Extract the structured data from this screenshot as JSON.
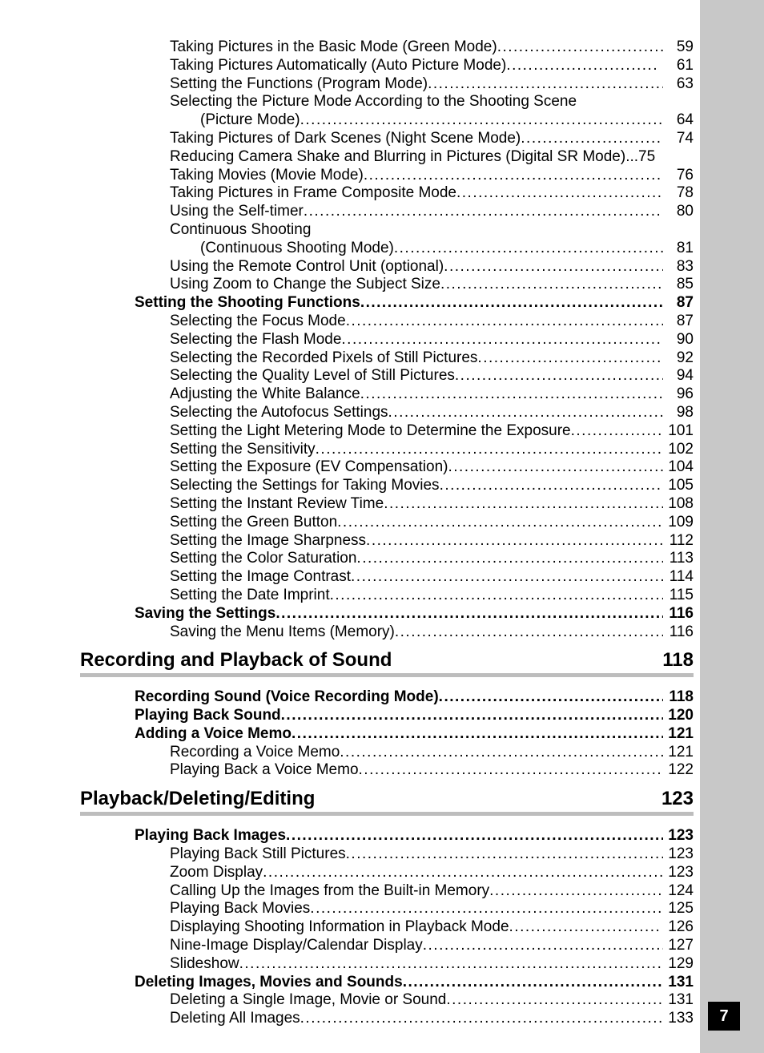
{
  "page_number": "7",
  "colors": {
    "right_bar": "#c8c8c8",
    "page_box_bg": "#000000",
    "page_box_fg": "#ffffff",
    "rule": "#bdbdbd",
    "text": "#000000",
    "page_bg": "#ffffff"
  },
  "typography": {
    "body_fontsize_pt": 14,
    "header_fontsize_pt": 18,
    "font_family": "Arial"
  },
  "entries": [
    {
      "kind": "line",
      "level": 2,
      "text": "Taking Pictures in the Basic Mode (Green Mode)",
      "page": "59"
    },
    {
      "kind": "line",
      "level": 2,
      "text": "Taking Pictures Automatically (Auto Picture Mode)",
      "page": "61",
      "short_dots": true
    },
    {
      "kind": "line",
      "level": 2,
      "text": "Setting the Functions (Program Mode)",
      "page": "63"
    },
    {
      "kind": "line-nopage",
      "level": 2,
      "text": "Selecting the Picture Mode According to the Shooting Scene"
    },
    {
      "kind": "cont",
      "text": "(Picture Mode)",
      "page": "64"
    },
    {
      "kind": "line",
      "level": 2,
      "text": "Taking Pictures of Dark Scenes (Night Scene Mode)",
      "page": "74",
      "short_dots": true
    },
    {
      "kind": "line",
      "level": 2,
      "text": "Reducing Camera Shake and Blurring in Pictures (Digital SR Mode)",
      "page": "75",
      "tight": true
    },
    {
      "kind": "line",
      "level": 2,
      "text": "Taking Movies (Movie Mode)",
      "page": "76"
    },
    {
      "kind": "line",
      "level": 2,
      "text": "Taking Pictures in Frame Composite Mode",
      "page": "78"
    },
    {
      "kind": "line",
      "level": 2,
      "text": "Using the Self-timer",
      "page": "80"
    },
    {
      "kind": "line-nopage",
      "level": 2,
      "text": "Continuous Shooting"
    },
    {
      "kind": "cont",
      "text": "(Continuous Shooting Mode)",
      "page": "81"
    },
    {
      "kind": "line",
      "level": 2,
      "text": "Using the Remote Control Unit (optional)",
      "page": "83"
    },
    {
      "kind": "line",
      "level": 2,
      "text": "Using Zoom to Change the Subject Size",
      "page": "85"
    },
    {
      "kind": "line",
      "level": 1,
      "text": "Setting the Shooting Functions",
      "page": "87"
    },
    {
      "kind": "line",
      "level": 2,
      "text": "Selecting the Focus Mode",
      "page": "87"
    },
    {
      "kind": "line",
      "level": 2,
      "text": "Selecting the Flash Mode",
      "page": "90"
    },
    {
      "kind": "line",
      "level": 2,
      "text": "Selecting the Recorded Pixels of Still Pictures",
      "page": "92"
    },
    {
      "kind": "line",
      "level": 2,
      "text": "Selecting the Quality Level of Still Pictures",
      "page": "94"
    },
    {
      "kind": "line",
      "level": 2,
      "text": "Adjusting the White Balance",
      "page": "96"
    },
    {
      "kind": "line",
      "level": 2,
      "text": "Selecting the Autofocus Settings",
      "page": "98"
    },
    {
      "kind": "line",
      "level": 2,
      "text": "Setting the Light Metering Mode to Determine the Exposure",
      "page": "101"
    },
    {
      "kind": "line",
      "level": 2,
      "text": "Setting the Sensitivity",
      "page": "102"
    },
    {
      "kind": "line",
      "level": 2,
      "text": "Setting the Exposure (EV Compensation)",
      "page": "104"
    },
    {
      "kind": "line",
      "level": 2,
      "text": "Selecting the Settings for Taking Movies",
      "page": "105"
    },
    {
      "kind": "line",
      "level": 2,
      "text": "Setting the Instant Review Time",
      "page": "108"
    },
    {
      "kind": "line",
      "level": 2,
      "text": "Setting the Green Button",
      "page": "109"
    },
    {
      "kind": "line",
      "level": 2,
      "text": "Setting the Image Sharpness",
      "page": "112"
    },
    {
      "kind": "line",
      "level": 2,
      "text": "Setting the Color Saturation",
      "page": "113"
    },
    {
      "kind": "line",
      "level": 2,
      "text": "Setting the Image Contrast",
      "page": "114"
    },
    {
      "kind": "line",
      "level": 2,
      "text": "Setting the Date Imprint",
      "page": "115"
    },
    {
      "kind": "line",
      "level": 1,
      "text": "Saving the Settings",
      "page": "116"
    },
    {
      "kind": "line",
      "level": 2,
      "text": "Saving the Menu Items (Memory)",
      "page": "116"
    },
    {
      "kind": "section",
      "title": "Recording and Playback of Sound",
      "page": "118"
    },
    {
      "kind": "line",
      "level": 1,
      "text": "Recording Sound (Voice Recording Mode)",
      "page": "118"
    },
    {
      "kind": "line",
      "level": 1,
      "text": "Playing Back Sound",
      "page": "120"
    },
    {
      "kind": "line",
      "level": 1,
      "text": "Adding a Voice Memo",
      "page": "121"
    },
    {
      "kind": "line",
      "level": 2,
      "text": "Recording a Voice Memo",
      "page": "121"
    },
    {
      "kind": "line",
      "level": 2,
      "text": "Playing Back a Voice Memo",
      "page": "122"
    },
    {
      "kind": "section",
      "title": "Playback/Deleting/Editing",
      "page": "123"
    },
    {
      "kind": "line",
      "level": 1,
      "text": "Playing Back Images",
      "page": "123"
    },
    {
      "kind": "line",
      "level": 2,
      "text": "Playing Back Still Pictures",
      "page": "123"
    },
    {
      "kind": "line",
      "level": 2,
      "text": "Zoom Display",
      "page": "123"
    },
    {
      "kind": "line",
      "level": 2,
      "text": "Calling Up the Images from the Built-in Memory",
      "page": "124"
    },
    {
      "kind": "line",
      "level": 2,
      "text": "Playing Back Movies",
      "page": "125"
    },
    {
      "kind": "line",
      "level": 2,
      "text": "Displaying Shooting Information in Playback Mode",
      "page": "126",
      "short_dots": true
    },
    {
      "kind": "line",
      "level": 2,
      "text": "Nine-Image Display/Calendar Display",
      "page": "127"
    },
    {
      "kind": "line",
      "level": 2,
      "text": "Slideshow",
      "page": "129"
    },
    {
      "kind": "line",
      "level": 1,
      "text": "Deleting Images, Movies and Sounds",
      "page": "131"
    },
    {
      "kind": "line",
      "level": 2,
      "text": "Deleting a Single Image, Movie or Sound",
      "page": "131"
    },
    {
      "kind": "line",
      "level": 2,
      "text": "Deleting All Images",
      "page": "133"
    }
  ]
}
